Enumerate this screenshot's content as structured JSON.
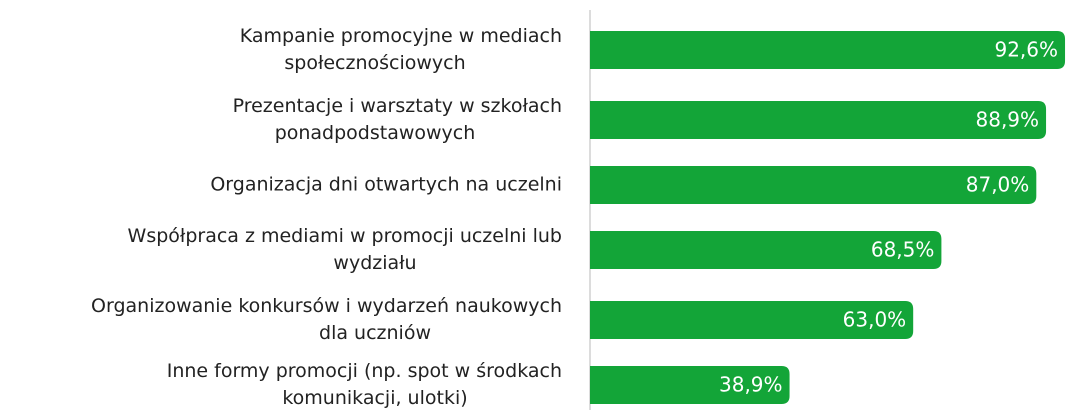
{
  "chart_data": {
    "type": "bar",
    "orientation": "horizontal",
    "categories": [
      [
        "Kampanie promocyjne w mediach",
        "społecznościowych"
      ],
      [
        "Prezentacje i warsztaty w szkołach",
        "ponadpodstawowych"
      ],
      [
        "Organizacja dni otwartych na uczelni"
      ],
      [
        "Współpraca z mediami w promocji uczelni lub",
        "wydziału"
      ],
      [
        "Organizowanie konkursów i wydarzeń naukowych",
        "dla uczniów"
      ],
      [
        "Inne formy promocji (np. spot w środkach",
        "komunikacji, ulotki)"
      ]
    ],
    "values": [
      92.6,
      88.9,
      87.0,
      68.5,
      63.0,
      38.9
    ],
    "value_labels": [
      "92,6%",
      "88,9%",
      "87,0%",
      "68,5%",
      "63,0%",
      "38,9%"
    ],
    "color": "#13a538",
    "xlim": [
      0,
      100
    ]
  }
}
